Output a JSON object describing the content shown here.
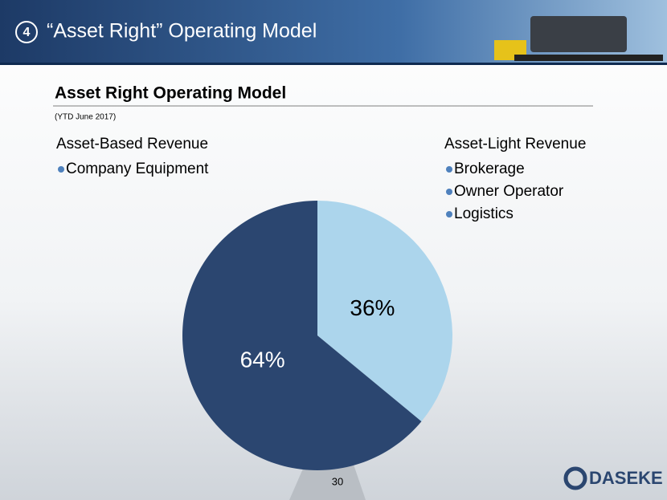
{
  "header": {
    "number": "4",
    "title": "“Asset Right” Operating Model"
  },
  "chart_data": {
    "type": "pie",
    "title": "Asset Right Operating Model",
    "subtitle": "(YTD June 2017)",
    "categories": [
      "Asset-Light Revenue",
      "Asset-Based Revenue"
    ],
    "category_items": [
      [
        "Brokerage",
        "Owner Operator",
        "Logistics"
      ],
      [
        "Company Equipment"
      ]
    ],
    "values": [
      36,
      64
    ],
    "value_labels": [
      "36%",
      "64%"
    ],
    "colors": [
      "#acd5ec",
      "#2b4670"
    ]
  },
  "footer": {
    "page": "30",
    "logo": "DASEKE"
  }
}
